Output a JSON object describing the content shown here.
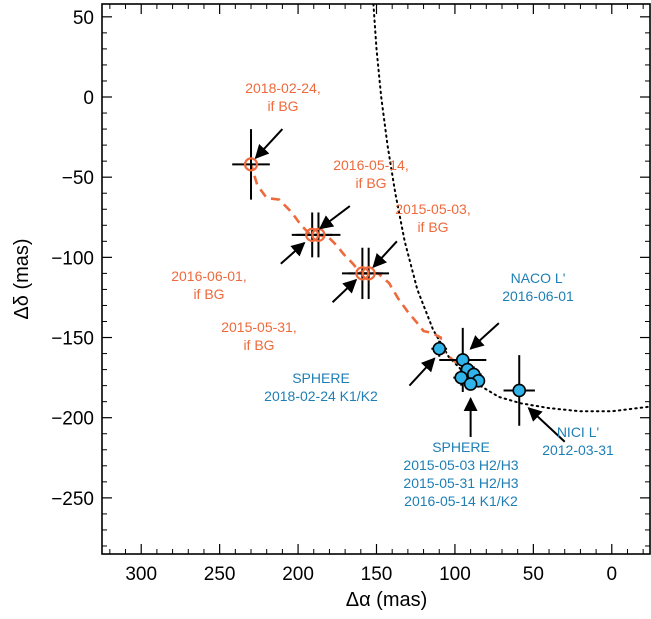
{
  "chart_data": {
    "type": "scatter",
    "xlabel": "Δα (mas)",
    "ylabel": "Δδ (mas)",
    "xlim": [
      325,
      -25
    ],
    "ylim": [
      -285,
      58
    ],
    "xticks": [
      "300",
      "250",
      "200",
      "150",
      "100",
      "50",
      "0"
    ],
    "xtick_values": [
      300,
      250,
      200,
      150,
      100,
      50,
      0
    ],
    "yticks": [
      "50",
      "0",
      "−50",
      "−100",
      "−150",
      "−200",
      "−250"
    ],
    "ytick_values": [
      50,
      0,
      -50,
      -100,
      -150,
      -200,
      -250
    ],
    "grid": false,
    "colors": {
      "background_track": "#ee6a3c",
      "observed": "#2fb3e8",
      "annotation_blue": "#1f7fb5",
      "annotation_orange": "#ee6a3c"
    },
    "background_positions": [
      {
        "date": "2018-02-24",
        "x": 230,
        "y": -42,
        "xerr": 12,
        "yerr": 22
      },
      {
        "date": "2016-05-14",
        "x": 187,
        "y": -86,
        "xerr": 14,
        "yerr": 14
      },
      {
        "date": "2016-06-01",
        "x": 191,
        "y": -86,
        "xerr": 13,
        "yerr": 14
      },
      {
        "date": "2015-05-03",
        "x": 155,
        "y": -110,
        "xerr": 13,
        "yerr": 16
      },
      {
        "date": "2015-05-31",
        "x": 159,
        "y": -110,
        "xerr": 13,
        "yerr": 16
      }
    ],
    "observed": [
      {
        "label": "SPHERE 2018-02-24 K1/K2",
        "x": 110,
        "y": -157,
        "xerr": 5,
        "yerr": 5
      },
      {
        "label": "NACO L' 2016-06-01",
        "x": 95,
        "y": -164,
        "xerr": 15,
        "yerr": 20
      },
      {
        "label": "SPHERE 2015-05-03",
        "x": 92,
        "y": -170,
        "xerr": 5,
        "yerr": 5
      },
      {
        "label": "SPHERE 2015-05-31",
        "x": 88,
        "y": -173,
        "xerr": 5,
        "yerr": 5
      },
      {
        "label": "SPHERE 2016-05-14",
        "x": 96,
        "y": -175,
        "xerr": 5,
        "yerr": 5
      },
      {
        "label": "SPHERE",
        "x": 85,
        "y": -177,
        "xerr": 4,
        "yerr": 4
      },
      {
        "label": "SPHERE",
        "x": 90,
        "y": -179,
        "xerr": 4,
        "yerr": 4
      },
      {
        "label": "NICI L' 2012-03-31",
        "x": 59,
        "y": -183,
        "xerr": 10,
        "yerr": 22
      }
    ],
    "orbit_dotted": [
      [
        152,
        58
      ],
      [
        150,
        30
      ],
      [
        147,
        0
      ],
      [
        143,
        -30
      ],
      [
        138,
        -60
      ],
      [
        132,
        -90
      ],
      [
        124,
        -120
      ],
      [
        114,
        -145
      ],
      [
        104,
        -162
      ],
      [
        94,
        -172
      ],
      [
        84,
        -180
      ],
      [
        72,
        -187
      ],
      [
        58,
        -191
      ],
      [
        40,
        -194
      ],
      [
        20,
        -196
      ],
      [
        0,
        -196
      ],
      [
        -25,
        -193
      ]
    ],
    "background_track_dashed": [
      [
        88,
        -180
      ],
      [
        92,
        -170
      ],
      [
        100,
        -165
      ],
      [
        106,
        -160
      ],
      [
        109,
        -156
      ],
      [
        109,
        -150
      ],
      [
        115,
        -147
      ],
      [
        120,
        -146
      ],
      [
        124,
        -141
      ],
      [
        130,
        -134
      ],
      [
        136,
        -126
      ],
      [
        142,
        -116
      ],
      [
        149,
        -110
      ],
      [
        155,
        -110
      ],
      [
        160,
        -110
      ],
      [
        165,
        -104
      ],
      [
        171,
        -98
      ],
      [
        175,
        -93
      ],
      [
        180,
        -88
      ],
      [
        187,
        -86
      ],
      [
        192,
        -86
      ],
      [
        198,
        -80
      ],
      [
        204,
        -72
      ],
      [
        212,
        -64
      ],
      [
        220,
        -63
      ],
      [
        226,
        -55
      ],
      [
        230,
        -42
      ]
    ],
    "annotations_orange": [
      {
        "lines": [
          "2018-02-24,",
          "if BG"
        ],
        "arrow_from": [
          210,
          -20
        ],
        "arrow_to": [
          227,
          -38
        ]
      },
      {
        "lines": [
          "2016-05-14,",
          "if BG"
        ],
        "arrow_from": [
          167,
          -68
        ],
        "arrow_to": [
          186,
          -82
        ]
      },
      {
        "lines": [
          "2015-05-03,",
          "if BG"
        ],
        "arrow_from": [
          137,
          -90
        ],
        "arrow_to": [
          152,
          -106
        ]
      },
      {
        "lines": [
          "2016-06-01,",
          "if BG"
        ],
        "arrow_from": [
          211,
          -104
        ],
        "arrow_to": [
          196,
          -91
        ]
      },
      {
        "lines": [
          "2015-05-31,",
          "if BG"
        ],
        "arrow_from": [
          178,
          -128
        ],
        "arrow_to": [
          163,
          -114
        ]
      }
    ],
    "annotations_blue": [
      {
        "lines": [
          "NACO L'",
          "2016-06-01"
        ],
        "arrow_from": [
          72,
          -141
        ],
        "arrow_to": [
          90,
          -157
        ]
      },
      {
        "lines": [
          "SPHERE",
          "2018-02-24 K1/K2"
        ],
        "arrow_from": [
          129,
          -180
        ],
        "arrow_to": [
          113,
          -163
        ]
      },
      {
        "lines": [
          "SPHERE",
          "2015-05-03 H2/H3",
          "2015-05-31 H2/H3",
          "2016-05-14 K1/K2"
        ],
        "arrow_from": [
          90,
          -212
        ],
        "arrow_to": [
          90,
          -188
        ]
      },
      {
        "lines": [
          "NICI L'",
          "2012-03-31"
        ],
        "arrow_from": [
          30,
          -215
        ],
        "arrow_to": [
          53,
          -194
        ]
      }
    ]
  }
}
